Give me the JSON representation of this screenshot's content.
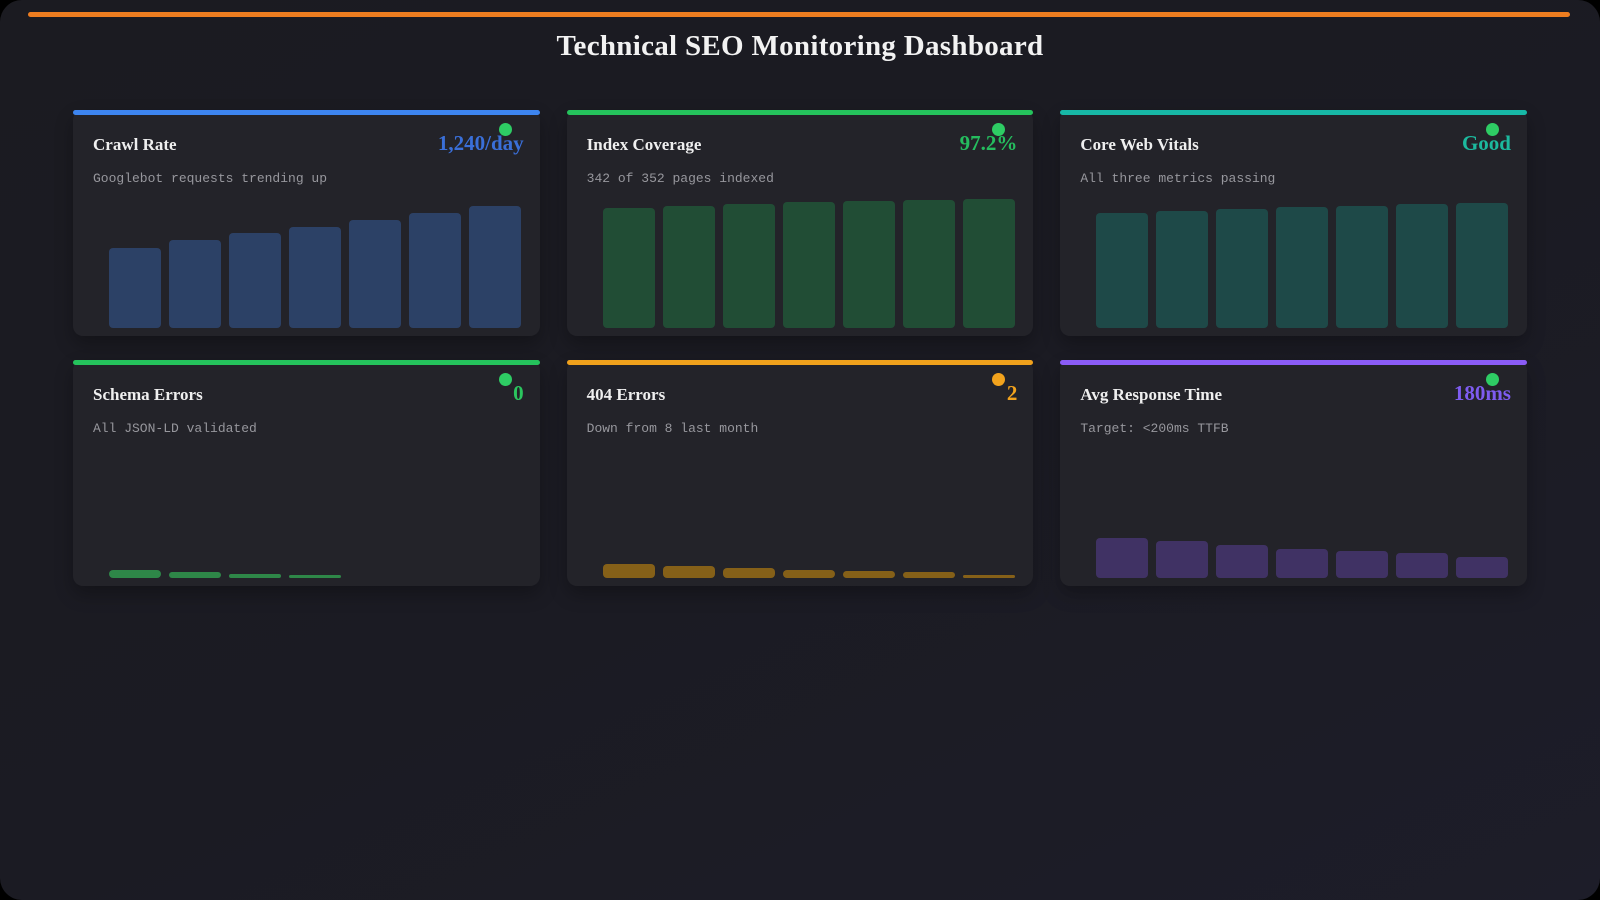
{
  "page": {
    "title": "Technical SEO Monitoring Dashboard",
    "top_accent_color": "#ed7d20",
    "background_color": "#1b1b22",
    "card_background_color": "#232329"
  },
  "cards": [
    {
      "title": "Crawl Rate",
      "value": "1,240/day",
      "subtitle": "Googlebot requests trending up",
      "accent_color": "#3d85f0",
      "value_color": "#3a6fd8",
      "bar_color": "#2c4166",
      "dot_color": "#2ecc64",
      "status_dot": "green",
      "bars": [
        80,
        88,
        95,
        101,
        108,
        115,
        122
      ]
    },
    {
      "title": "Index Coverage",
      "value": "97.2%",
      "subtitle": "342 of 352 pages indexed",
      "accent_color": "#25c35c",
      "value_color": "#25bd5e",
      "bar_color": "#214d35",
      "dot_color": "#2ecc64",
      "status_dot": "green",
      "bars": [
        120,
        122,
        124,
        126,
        127,
        128,
        129
      ]
    },
    {
      "title": "Core Web Vitals",
      "value": "Good",
      "subtitle": "All three metrics passing",
      "accent_color": "#17b8a6",
      "value_color": "#1cb99e",
      "bar_color": "#1e4948",
      "dot_color": "#2ecc64",
      "status_dot": "green",
      "bars": [
        115,
        117,
        119,
        121,
        122,
        124,
        125
      ]
    },
    {
      "title": "Schema Errors",
      "value": "0",
      "subtitle": "All JSON-LD validated",
      "accent_color": "#25c35c",
      "value_color": "#2bc55e",
      "bar_color": "#2e8748",
      "dot_color": "#2ecc64",
      "status_dot": "green",
      "bars": [
        8,
        6,
        4,
        3
      ]
    },
    {
      "title": "404 Errors",
      "value": "2",
      "subtitle": "Down from 8 last month",
      "accent_color": "#f0a11c",
      "value_color": "#f2a31d",
      "bar_color": "#856018",
      "dot_color": "#f2a31d",
      "status_dot": "orange",
      "bars": [
        14,
        12,
        10,
        8,
        7,
        6,
        3
      ]
    },
    {
      "title": "Avg Response Time",
      "value": "180ms",
      "subtitle": "Target: <200ms TTFB",
      "accent_color": "#8b5cf6",
      "value_color": "#7e5cf0",
      "bar_color": "#403264",
      "dot_color": "#2ecc64",
      "status_dot": "green",
      "bars": [
        40,
        37,
        33,
        29,
        27,
        25,
        21
      ]
    }
  ]
}
